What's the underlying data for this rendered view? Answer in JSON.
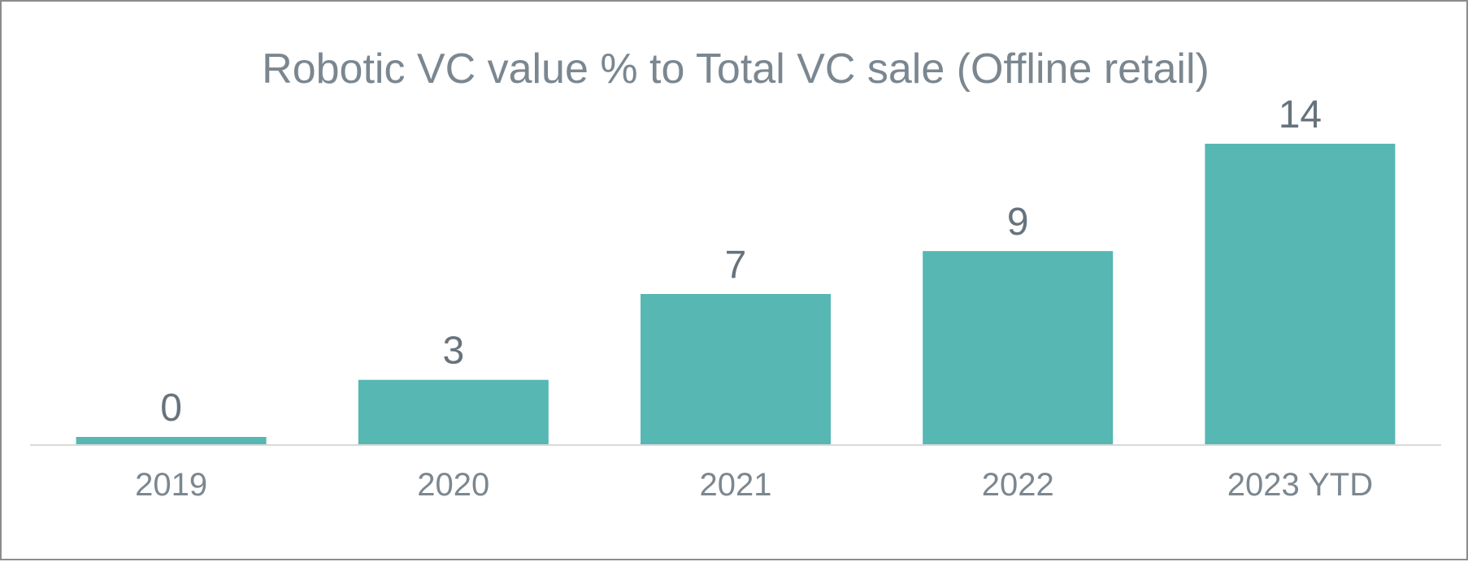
{
  "chart_data": {
    "type": "bar",
    "title": "Robotic VC value % to Total VC sale (Offline retail)",
    "categories": [
      "2019",
      "2020",
      "2021",
      "2022",
      "2023 YTD"
    ],
    "values": [
      0,
      3,
      7,
      9,
      14
    ],
    "data_labels": [
      "0",
      "3",
      "7",
      "9",
      "14"
    ],
    "xlabel": "",
    "ylabel": "",
    "ylim": [
      0,
      14
    ],
    "grid": false,
    "legend": "none",
    "colors": {
      "bar": "#56b7b3",
      "axis": "#d9d9d9",
      "text": "#7b8790",
      "border": "#8c8c8c"
    }
  }
}
